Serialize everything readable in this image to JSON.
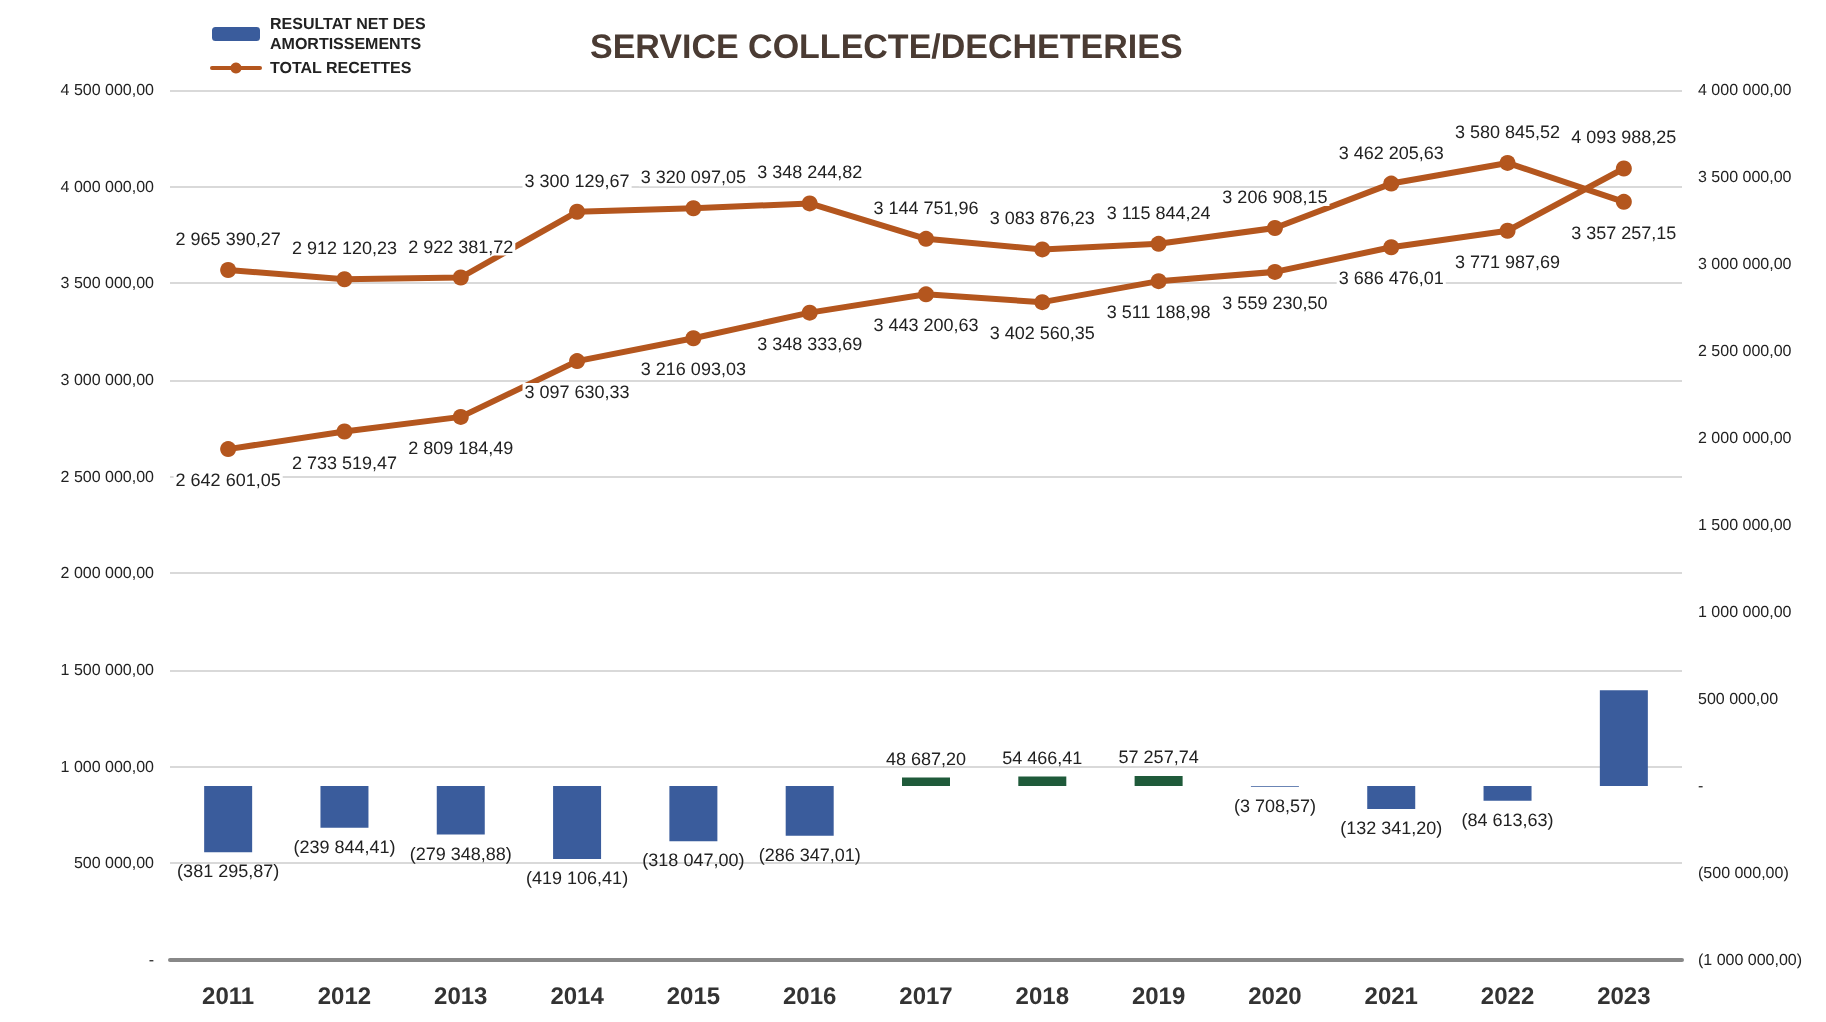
{
  "chart_data": {
    "type": "line",
    "title": "SERVICE COLLECTE/DECHETERIES",
    "categories": [
      "2011",
      "2012",
      "2013",
      "2014",
      "2015",
      "2016",
      "2017",
      "2018",
      "2019",
      "2020",
      "2021",
      "2022",
      "2023"
    ],
    "series": [
      {
        "name": "RESULTAT NET DES AMORTISSEMENTS",
        "type": "bar",
        "axis": "y2",
        "color": "#3a5c9c",
        "colors": [
          "#3a5c9c",
          "#3a5c9c",
          "#3a5c9c",
          "#3a5c9c",
          "#3a5c9c",
          "#3a5c9c",
          "#1f5a3a",
          "#1f5a3a",
          "#1f5a3a",
          "#3a5c9c",
          "#3a5c9c",
          "#3a5c9c",
          "#3a5c9c"
        ],
        "values": [
          -381295.87,
          -239844.41,
          -279348.88,
          -419106.41,
          -318047.0,
          -286347.01,
          48687.2,
          54466.41,
          57257.74,
          -3708.57,
          -132341.2,
          -84613.63,
          550000
        ],
        "value_labels": [
          "(381 295,87)",
          "(239 844,41)",
          "(279 348,88)",
          "(419 106,41)",
          "(318 047,00)",
          "(286 347,01)",
          "48 687,20",
          "54 466,41",
          "57 257,74",
          "(3 708,57)",
          "(132 341,20)",
          "(84 613,63)",
          null
        ]
      },
      {
        "axis": "y2",
        "color": "#b4561e",
        "values": [
          2965390.27,
          2912120.23,
          2922381.72,
          3300129.67,
          3320097.05,
          3348244.82,
          3144751.96,
          3083876.23,
          3115844.24,
          3206908.15,
          3462205.63,
          3580845.52,
          3357257.15
        ],
        "value_labels": [
          "2 965 390,27",
          "2 912 120,23",
          "2 922 381,72",
          "3 300 129,67",
          "3 320 097,05",
          "3 348 244,82",
          "3 144 751,96",
          "3 083 876,23",
          "3 115 844,24",
          "3 206 908,15",
          "3 462 205,63",
          "3 580 845,52",
          "3 357 257,15"
        ]
      },
      {
        "name": "TOTAL RECETTES",
        "axis": "y",
        "color": "#b4561e",
        "values": [
          2642601.05,
          2733519.47,
          2809184.49,
          3097630.33,
          3216093.03,
          3348333.69,
          3443200.63,
          3402560.35,
          3511188.98,
          3559230.5,
          3686476.01,
          3771987.69,
          4093988.25
        ],
        "value_labels": [
          "2 642 601,05",
          "2 733 519,47",
          "2 809 184,49",
          "3 097 630,33",
          "3 216 093,03",
          "3 348 333,69",
          "3 443 200,63",
          "3 402 560,35",
          "3 511 188,98",
          "3 559 230,50",
          "3 686 476,01",
          "3 771 987,69",
          "4 093 988,25"
        ]
      }
    ],
    "ylim": [
      0,
      4500000
    ],
    "yticks": [
      {
        "value": 0,
        "label": "-"
      },
      {
        "value": 500000,
        "label": "500 000,00"
      },
      {
        "value": 1000000,
        "label": "1 000 000,00"
      },
      {
        "value": 1500000,
        "label": "1 500 000,00"
      },
      {
        "value": 2000000,
        "label": "2 000 000,00"
      },
      {
        "value": 2500000,
        "label": "2 500 000,00"
      },
      {
        "value": 3000000,
        "label": "3 000 000,00"
      },
      {
        "value": 3500000,
        "label": "3 500 000,00"
      },
      {
        "value": 4000000,
        "label": "4 000 000,00"
      },
      {
        "value": 4500000,
        "label": "4 500 000,00"
      }
    ],
    "y2lim": [
      -1000000,
      4000000
    ],
    "y2ticks": [
      {
        "value": -1000000,
        "label": "(1 000 000,00)"
      },
      {
        "value": -500000,
        "label": "(500 000,00)"
      },
      {
        "value": 0,
        "label": "-"
      },
      {
        "value": 500000,
        "label": "500 000,00"
      },
      {
        "value": 1000000,
        "label": "1 000 000,00"
      },
      {
        "value": 1500000,
        "label": "1 500 000,00"
      },
      {
        "value": 2000000,
        "label": "2 000 000,00"
      },
      {
        "value": 2500000,
        "label": "2 500 000,00"
      },
      {
        "value": 3000000,
        "label": "3 000 000,00"
      },
      {
        "value": 3500000,
        "label": "3 500 000,00"
      },
      {
        "value": 4000000,
        "label": "4 000 000,00"
      }
    ],
    "grid": "y",
    "legend": "top left",
    "marker": "circle",
    "line_style": "solid"
  }
}
